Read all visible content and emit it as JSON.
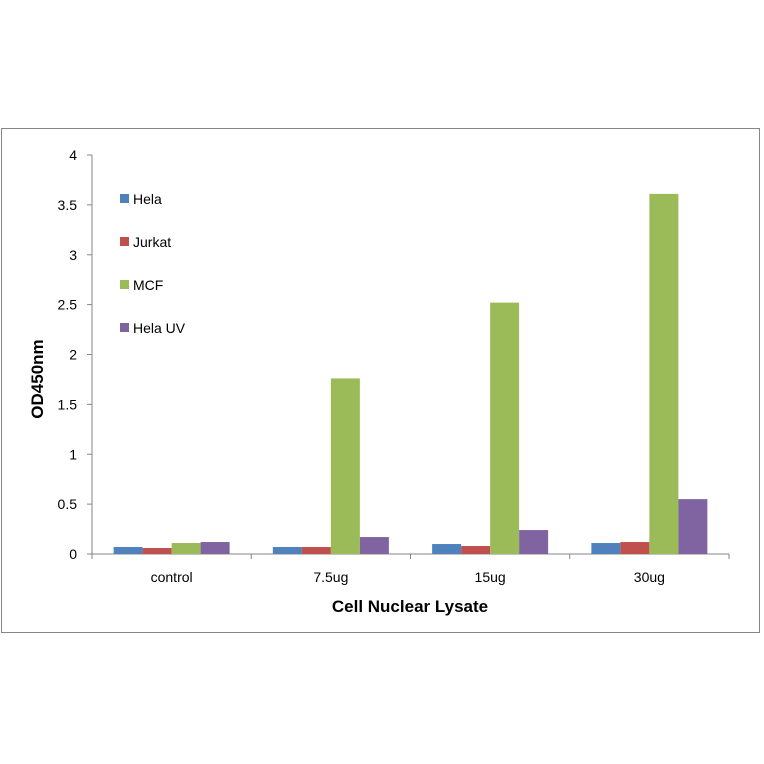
{
  "chart_data": {
    "type": "bar",
    "title": "",
    "xlabel": "Cell Nuclear Lysate",
    "ylabel": "OD450nm",
    "categories": [
      "control",
      "7.5ug",
      "15ug",
      "30ug"
    ],
    "ylim": [
      0,
      4
    ],
    "yticks": [
      0,
      0.5,
      1,
      1.5,
      2,
      2.5,
      3,
      3.5,
      4
    ],
    "yticklabels": [
      "0",
      "0.5",
      "1",
      "1.5",
      "2",
      "2.5",
      "3",
      "3.5",
      "4"
    ],
    "grid": false,
    "legend_position": "top-left",
    "series": [
      {
        "name": "Hela",
        "color": "#4f81bd",
        "values": [
          0.07,
          0.07,
          0.1,
          0.11
        ]
      },
      {
        "name": "Jurkat",
        "color": "#c0504d",
        "values": [
          0.06,
          0.07,
          0.08,
          0.12
        ]
      },
      {
        "name": "MCF",
        "color": "#9bbb59",
        "values": [
          0.11,
          1.76,
          2.52,
          3.61
        ]
      },
      {
        "name": "Hela UV",
        "color": "#8064a2",
        "values": [
          0.12,
          0.17,
          0.24,
          0.55
        ]
      }
    ]
  }
}
